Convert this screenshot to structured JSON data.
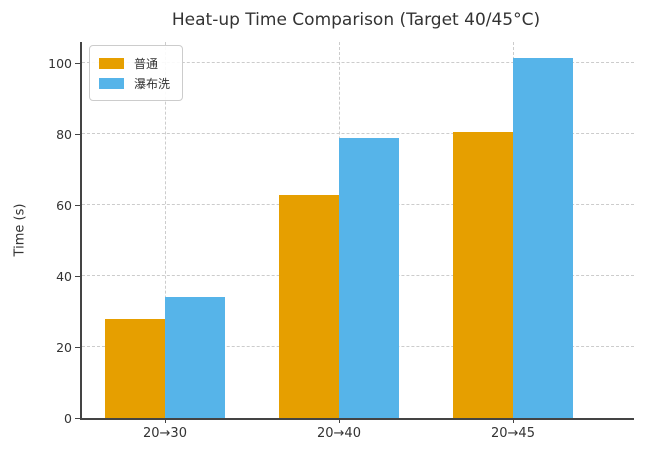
{
  "chart_data": {
    "type": "bar",
    "title": "Heat-up Time Comparison (Target 40/45°C)",
    "xlabel": "",
    "ylabel": "Time (s)",
    "categories": [
      "20→30",
      "20→40",
      "20→45"
    ],
    "series": [
      {
        "name": "普通",
        "color": "#E69F00",
        "values": [
          28,
          63,
          80.5
        ]
      },
      {
        "name": "瀑布洗",
        "color": "#56B4E9",
        "values": [
          34,
          79,
          101.5
        ]
      }
    ],
    "yticks": [
      0,
      20,
      40,
      60,
      80,
      100
    ],
    "ylim": [
      0,
      106
    ],
    "grid": "both-dashed",
    "legend_position": "upper-left",
    "colors": {
      "axis": "#444444",
      "grid": "#cccccc",
      "text": "#333333",
      "background": "#ffffff"
    }
  }
}
